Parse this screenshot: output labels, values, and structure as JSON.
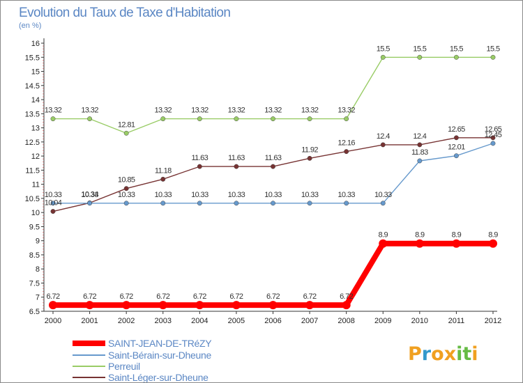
{
  "chart_data": {
    "type": "line",
    "title": "Evolution du Taux de Taxe d'Habitation",
    "ylabel": "(en %)",
    "xlabel": "",
    "x": [
      "2000",
      "2001",
      "2002",
      "2003",
      "2004",
      "2005",
      "2006",
      "2007",
      "2008",
      "2009",
      "2010",
      "2011",
      "2012"
    ],
    "ylim": [
      6.5,
      16
    ],
    "yticks": [
      "6.5",
      "7",
      "7.5",
      "8",
      "8.5",
      "9",
      "9.5",
      "10",
      "10.5",
      "11",
      "11.5",
      "12",
      "12.5",
      "13",
      "13.5",
      "14",
      "14.5",
      "15",
      "15.5",
      "16"
    ],
    "grid": false,
    "legend_position": "bottom-left",
    "series": [
      {
        "name": "SAINT-JEAN-DE-TRéZY",
        "color": "#ff0000",
        "values": [
          6.72,
          6.72,
          6.72,
          6.72,
          6.72,
          6.72,
          6.72,
          6.72,
          6.72,
          8.9,
          8.9,
          8.9,
          8.9
        ],
        "labels": [
          "6.72",
          "6.72",
          "6.72",
          "6.72",
          "6.72",
          "6.72",
          "6.72",
          "6.72",
          "6.72",
          "8.9",
          "8.9",
          "8.9",
          "8.9"
        ]
      },
      {
        "name": "Saint-Bérain-sur-Dheune",
        "color": "#6699cc",
        "values": [
          10.33,
          10.33,
          10.33,
          10.33,
          10.33,
          10.33,
          10.33,
          10.33,
          10.33,
          10.33,
          11.83,
          12.01,
          12.45
        ],
        "labels": [
          "10.33",
          "10.33",
          "10.33",
          "10.33",
          "10.33",
          "10.33",
          "10.33",
          "10.33",
          "10.33",
          "10.33",
          "11.83",
          "12.01",
          "12.45"
        ]
      },
      {
        "name": "Perreuil",
        "color": "#99cc66",
        "values": [
          13.32,
          13.32,
          12.81,
          13.32,
          13.32,
          13.32,
          13.32,
          13.32,
          13.32,
          15.5,
          15.5,
          15.5,
          15.5
        ],
        "labels": [
          "13.32",
          "13.32",
          "12.81",
          "13.32",
          "13.32",
          "13.32",
          "13.32",
          "13.32",
          "13.32",
          "15.5",
          "15.5",
          "15.5",
          "15.5"
        ]
      },
      {
        "name": "Saint-Léger-sur-Dheune",
        "color": "#773333",
        "values": [
          10.04,
          10.34,
          10.85,
          11.18,
          11.63,
          11.63,
          11.63,
          11.92,
          12.16,
          12.4,
          12.4,
          12.65,
          12.65
        ],
        "labels": [
          "10.04",
          "10.34",
          "10.85",
          "11.18",
          "11.63",
          "11.63",
          "11.63",
          "11.92",
          "12.16",
          "12.4",
          "12.4",
          "12.65",
          "12.65"
        ]
      }
    ]
  },
  "logo": {
    "letters": [
      "P",
      "r",
      "o",
      "x",
      "i",
      "t",
      "i"
    ],
    "colors": [
      "#f0a020",
      "#3399cc",
      "#f0a020",
      "#f0a020",
      "#66bb44",
      "#66bb44",
      "#f0a020"
    ]
  }
}
